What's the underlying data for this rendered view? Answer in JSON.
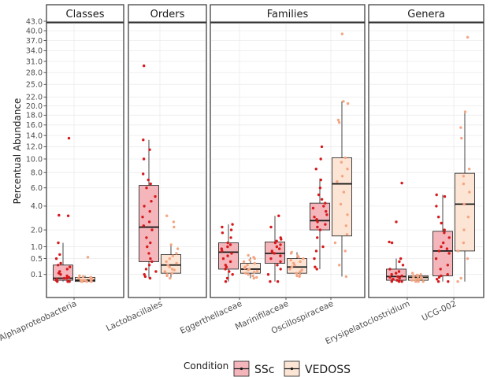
{
  "chart_data": {
    "type": "box",
    "ylabel": "Percentual Abundance",
    "xlabel": "",
    "yticks": [
      0.1,
      0.5,
      1.0,
      2.0,
      4.0,
      6.0,
      8.0,
      10.0,
      12.0,
      14.0,
      16.0,
      18.0,
      20.0,
      22.0,
      25.0,
      28.0,
      31.0,
      34.0,
      37.0,
      40.0,
      43.0
    ],
    "ytick_labels": [
      "0.1",
      "0.5",
      "1.0",
      "2.0",
      "4.0",
      "6.0",
      "8.0",
      "10.0",
      "12.0",
      "14.0",
      "16.0",
      "18.0",
      "20.0",
      "22.0",
      "25.0",
      "28.0",
      "31.0",
      "34.0",
      "37.0",
      "40.0",
      "43.0"
    ],
    "ylim": [
      0,
      43
    ],
    "scale": "sqrt",
    "grid": true,
    "legend": {
      "title": "Condition",
      "position": "bottom",
      "entries": [
        {
          "name": "SSc",
          "fill": "#f4b6bb",
          "point": "#d7191c"
        },
        {
          "name": "VEDOSS",
          "fill": "#fde5d5",
          "point": "#f4a582"
        }
      ]
    },
    "facets": [
      {
        "label": "Classes",
        "categories": [
          "Alphaproteobacteria"
        ],
        "boxes": [
          {
            "category": "Alphaproteobacteria",
            "condition": "SSc",
            "min": 0.02,
            "q1": 0.03,
            "median": 0.05,
            "q3": 0.3,
            "max": 1.2,
            "points": [
              0.02,
              0.02,
              0.02,
              0.03,
              0.03,
              0.04,
              0.05,
              0.05,
              0.06,
              0.08,
              0.1,
              0.12,
              0.15,
              0.2,
              0.25,
              0.3,
              0.35,
              0.5,
              0.65,
              1.2,
              3.1,
              3.15,
              13.5
            ]
          },
          {
            "category": "Alphaproteobacteria",
            "condition": "VEDOSS",
            "min": 0.02,
            "q1": 0.02,
            "median": 0.03,
            "q3": 0.06,
            "max": 0.08,
            "points": [
              0.02,
              0.02,
              0.02,
              0.02,
              0.02,
              0.03,
              0.03,
              0.03,
              0.03,
              0.04,
              0.04,
              0.05,
              0.05,
              0.06,
              0.06,
              0.07,
              0.08,
              0.55
            ]
          }
        ]
      },
      {
        "label": "Orders",
        "categories": [
          "Lactobacillales"
        ],
        "boxes": [
          {
            "category": "Lactobacillales",
            "condition": "SSc",
            "min": 0.05,
            "q1": 0.4,
            "median": 2.2,
            "q3": 6.3,
            "max": 13.2,
            "points": [
              0.05,
              0.07,
              0.1,
              0.15,
              0.2,
              0.3,
              0.4,
              0.5,
              0.7,
              1.0,
              1.2,
              1.5,
              2.0,
              2.3,
              2.6,
              3.0,
              3.5,
              4.0,
              4.5,
              5.0,
              6.0,
              6.5,
              7.0,
              7.8,
              10.0,
              11.5,
              13.2,
              29.8
            ]
          },
          {
            "category": "Lactobacillales",
            "condition": "VEDOSS",
            "min": 0.05,
            "q1": 0.12,
            "median": 0.3,
            "q3": 0.65,
            "max": 1.1,
            "points": [
              0.05,
              0.08,
              0.1,
              0.12,
              0.15,
              0.18,
              0.2,
              0.25,
              0.3,
              0.35,
              0.4,
              0.5,
              0.6,
              0.7,
              0.9,
              1.1,
              2.2,
              2.6,
              3.1
            ]
          }
        ]
      },
      {
        "label": "Families",
        "categories": [
          "Eggerthellaceae",
          "Marinifilaceae",
          "Oscillospiraceae"
        ],
        "boxes": [
          {
            "category": "Eggerthellaceae",
            "condition": "SSc",
            "min": 0.02,
            "q1": 0.2,
            "median": 0.75,
            "q3": 1.2,
            "max": 2.4,
            "points": [
              0.02,
              0.05,
              0.1,
              0.15,
              0.2,
              0.25,
              0.3,
              0.4,
              0.5,
              0.6,
              0.7,
              0.8,
              0.9,
              1.0,
              1.1,
              1.2,
              1.5,
              1.8,
              2.0,
              2.2,
              2.4
            ]
          },
          {
            "category": "Eggerthellaceae",
            "condition": "VEDOSS",
            "min": 0.05,
            "q1": 0.12,
            "median": 0.2,
            "q3": 0.35,
            "max": 0.55,
            "points": [
              0.05,
              0.06,
              0.08,
              0.1,
              0.12,
              0.14,
              0.16,
              0.18,
              0.2,
              0.22,
              0.25,
              0.3,
              0.35,
              0.4,
              0.45,
              0.5,
              0.55,
              0.62
            ]
          },
          {
            "category": "Marinifilaceae",
            "condition": "SSc",
            "min": 0.02,
            "q1": 0.35,
            "median": 0.7,
            "q3": 1.25,
            "max": 3.1,
            "points": [
              0.02,
              0.02,
              0.1,
              0.2,
              0.3,
              0.4,
              0.5,
              0.6,
              0.7,
              0.75,
              0.8,
              0.9,
              1.0,
              1.1,
              1.2,
              1.3,
              1.4,
              1.5,
              2.2,
              3.1
            ]
          },
          {
            "category": "Marinifilaceae",
            "condition": "VEDOSS",
            "min": 0.07,
            "q1": 0.12,
            "median": 0.25,
            "q3": 0.5,
            "max": 0.75,
            "points": [
              0.07,
              0.08,
              0.1,
              0.12,
              0.15,
              0.18,
              0.2,
              0.25,
              0.3,
              0.35,
              0.4,
              0.45,
              0.5,
              0.55,
              0.6,
              0.7,
              0.75
            ]
          },
          {
            "category": "Oscillospiraceae",
            "condition": "SSc",
            "min": 0.2,
            "q1": 2.0,
            "median": 2.7,
            "q3": 4.3,
            "max": 7.2,
            "points": [
              0.2,
              0.25,
              0.5,
              0.8,
              1.0,
              1.5,
              2.0,
              2.2,
              2.4,
              2.6,
              2.8,
              3.0,
              3.2,
              3.5,
              3.8,
              4.0,
              4.3,
              4.7,
              5.2,
              6.0,
              7.0,
              8.5,
              10.0,
              12.0
            ]
          },
          {
            "category": "Oscillospiraceae",
            "condition": "VEDOSS",
            "min": 0.07,
            "q1": 1.6,
            "median": 6.5,
            "q3": 10.2,
            "max": 21.0,
            "points": [
              0.07,
              0.3,
              0.8,
              1.2,
              1.7,
              2.3,
              3.2,
              4.2,
              5.5,
              6.8,
              7.5,
              8.5,
              9.5,
              10.2,
              16.5,
              17.0,
              20.5,
              21.0,
              39.0
            ]
          }
        ]
      },
      {
        "label": "Genera",
        "categories": [
          "Erysipelatoclostridium",
          "UCG-002"
        ],
        "boxes": [
          {
            "category": "Erysipelatoclostridium",
            "condition": "SSc",
            "min": 0.02,
            "q1": 0.03,
            "median": 0.07,
            "q3": 0.2,
            "max": 0.5,
            "points": [
              0.02,
              0.02,
              0.02,
              0.03,
              0.03,
              0.04,
              0.05,
              0.06,
              0.07,
              0.08,
              0.1,
              0.12,
              0.15,
              0.2,
              0.3,
              0.4,
              0.5,
              1.2,
              1.25,
              2.6,
              6.6
            ]
          },
          {
            "category": "Erysipelatoclostridium",
            "condition": "VEDOSS",
            "min": 0.02,
            "q1": 0.03,
            "median": 0.06,
            "q3": 0.08,
            "max": 0.1,
            "points": [
              0.02,
              0.02,
              0.02,
              0.03,
              0.03,
              0.04,
              0.04,
              0.05,
              0.05,
              0.06,
              0.06,
              0.07,
              0.08,
              0.09,
              0.1,
              0.12
            ]
          },
          {
            "category": "UCG-002",
            "condition": "SSc",
            "min": 0.02,
            "q1": 0.08,
            "median": 0.8,
            "q3": 1.9,
            "max": 5.2,
            "points": [
              0.02,
              0.02,
              0.04,
              0.06,
              0.08,
              0.1,
              0.2,
              0.3,
              0.5,
              0.7,
              0.8,
              0.9,
              1.0,
              1.2,
              1.5,
              1.8,
              2.0,
              2.5,
              3.0,
              4.0,
              5.0,
              5.2
            ]
          },
          {
            "category": "UCG-002",
            "condition": "VEDOSS",
            "min": 0.02,
            "q1": 0.8,
            "median": 4.2,
            "q3": 7.9,
            "max": 18.7,
            "points": [
              0.02,
              0.05,
              0.5,
              0.8,
              1.2,
              2.0,
              3.0,
              4.2,
              5.5,
              6.5,
              7.5,
              8.5,
              13.5,
              15.5,
              18.7,
              38.0
            ]
          }
        ]
      }
    ]
  }
}
